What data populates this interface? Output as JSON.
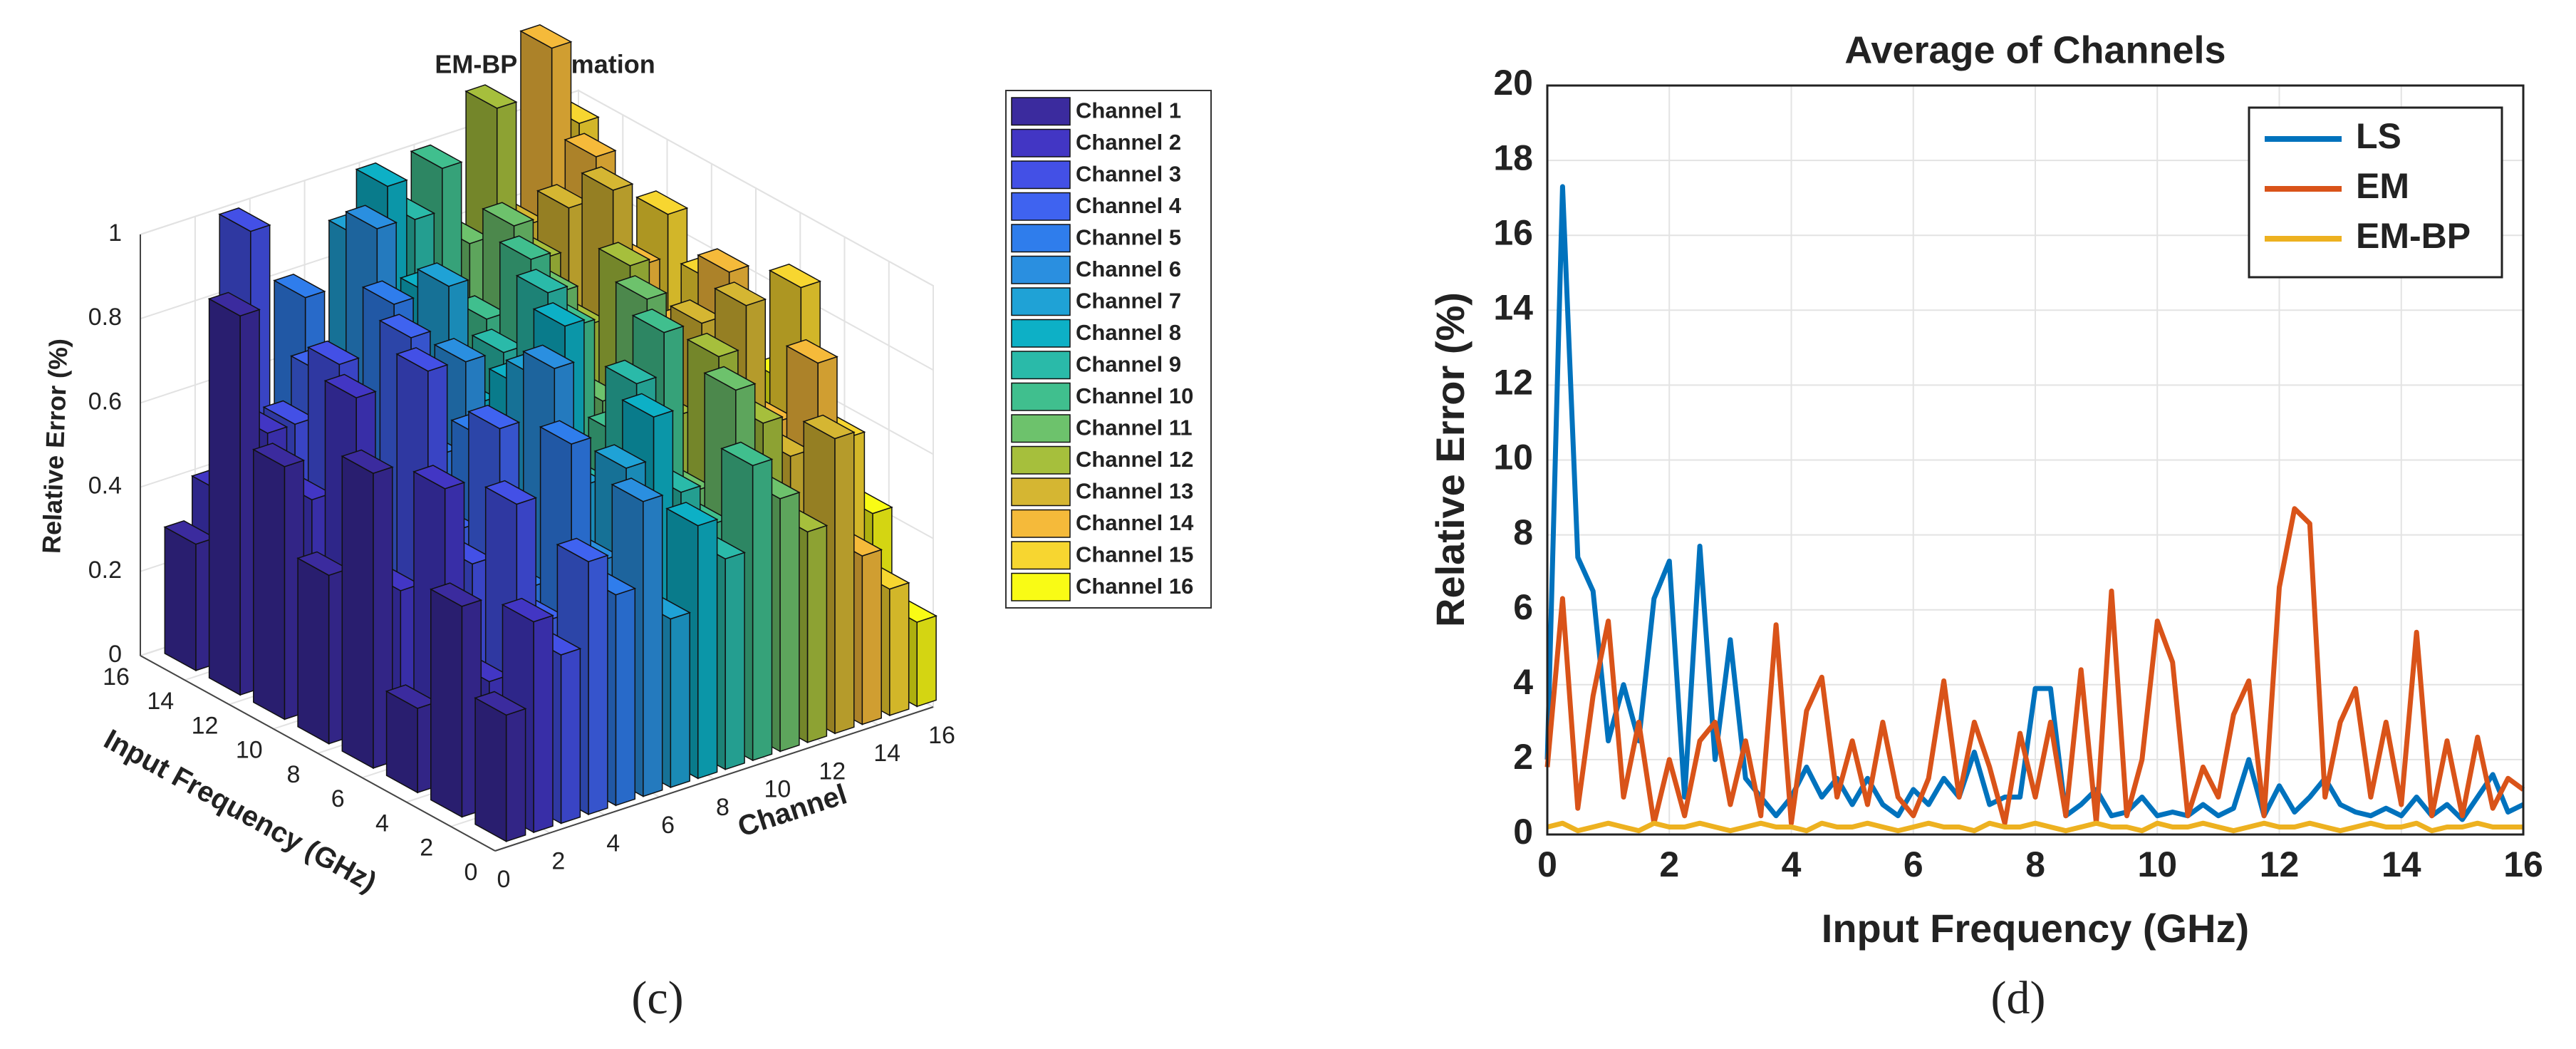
{
  "chart_data": [
    {
      "type": "bar3d",
      "title": "EM-BP Estimation",
      "xlabel": "Channel",
      "ylabel": "Input Frequency (GHz)",
      "zlabel": "Relative Error (%)",
      "caption": "(c)",
      "frequencies": [
        1,
        3,
        5,
        7,
        9,
        11,
        13,
        15
      ],
      "xlim": [
        0,
        16
      ],
      "xticks": [
        0,
        2,
        4,
        6,
        8,
        10,
        12,
        14,
        16
      ],
      "ylim": [
        0,
        16
      ],
      "yticks": [
        0,
        2,
        4,
        6,
        8,
        10,
        12,
        14,
        16
      ],
      "zlim": [
        0,
        1
      ],
      "zticks": [
        0,
        0.2,
        0.4,
        0.6,
        0.8,
        1
      ],
      "grid": true,
      "series": [
        {
          "name": "Channel 1",
          "color": "#3b2b9e",
          "values": [
            0.3,
            0.5,
            0.2,
            0.7,
            0.4,
            0.6,
            0.9,
            0.3
          ]
        },
        {
          "name": "Channel 2",
          "color": "#4236c4",
          "values": [
            0.5,
            0.3,
            0.7,
            0.4,
            0.8,
            0.5,
            0.6,
            0.4
          ]
        },
        {
          "name": "Channel 3",
          "color": "#4350e6",
          "values": [
            0.4,
            0.7,
            0.5,
            0.9,
            0.3,
            0.8,
            0.6,
            1.0
          ]
        },
        {
          "name": "Channel 4",
          "color": "#3f63f0",
          "values": [
            0.6,
            0.4,
            0.8,
            0.5,
            0.9,
            0.4,
            0.7,
            0.5
          ]
        },
        {
          "name": "Channel 5",
          "color": "#2f7dec",
          "values": [
            0.5,
            0.8,
            0.4,
            0.7,
            0.6,
            0.9,
            0.5,
            0.8
          ]
        },
        {
          "name": "Channel 6",
          "color": "#2a8fe0",
          "values": [
            0.7,
            0.5,
            0.9,
            0.4,
            0.8,
            0.6,
            1.0,
            0.6
          ]
        },
        {
          "name": "Channel 7",
          "color": "#1fa2d6",
          "values": [
            0.4,
            0.7,
            0.6,
            0.8,
            0.5,
            0.9,
            0.7,
            0.9
          ]
        },
        {
          "name": "Channel 8",
          "color": "#0db0c6",
          "values": [
            0.6,
            0.8,
            0.5,
            0.9,
            0.7,
            0.6,
            0.8,
            1.0
          ]
        },
        {
          "name": "Channel 9",
          "color": "#2abaa9",
          "values": [
            0.5,
            0.6,
            0.8,
            0.5,
            0.9,
            0.7,
            0.6,
            0.9
          ]
        },
        {
          "name": "Channel 10",
          "color": "#40bf8e",
          "values": [
            0.7,
            0.5,
            0.9,
            0.6,
            0.8,
            0.9,
            0.7,
            1.0
          ]
        },
        {
          "name": "Channel 11",
          "color": "#6dc26c",
          "values": [
            0.6,
            0.8,
            0.5,
            0.9,
            0.6,
            0.8,
            0.9,
            0.8
          ]
        },
        {
          "name": "Channel 12",
          "color": "#a6bf3c",
          "values": [
            0.5,
            0.7,
            0.8,
            0.6,
            0.9,
            0.7,
            0.8,
            1.1
          ]
        },
        {
          "name": "Channel 13",
          "color": "#d5b632",
          "values": [
            0.7,
            0.6,
            0.9,
            0.8,
            0.7,
            1.0,
            0.9,
            0.8
          ]
        },
        {
          "name": "Channel 14",
          "color": "#f5ba3a",
          "values": [
            0.4,
            0.8,
            0.6,
            0.9,
            0.7,
            0.8,
            1.0,
            1.2
          ]
        },
        {
          "name": "Channel 15",
          "color": "#f7d630",
          "values": [
            0.3,
            0.6,
            0.9,
            0.5,
            0.8,
            0.9,
            0.7,
            1.0
          ]
        },
        {
          "name": "Channel 16",
          "color": "#f9fb15",
          "values": [
            0.2,
            0.4,
            0.3,
            0.6,
            0.5,
            0.7,
            0.4,
            0.8
          ]
        }
      ]
    },
    {
      "type": "line",
      "title": "Average of Channels",
      "xlabel": "Input Frequency (GHz)",
      "ylabel": "Relative Error (%)",
      "caption": "(d)",
      "x": [
        0,
        0.25,
        0.5,
        0.75,
        1,
        1.25,
        1.5,
        1.75,
        2,
        2.25,
        2.5,
        2.75,
        3,
        3.25,
        3.5,
        3.75,
        4,
        4.25,
        4.5,
        4.75,
        5,
        5.25,
        5.5,
        5.75,
        6,
        6.25,
        6.5,
        6.75,
        7,
        7.25,
        7.5,
        7.75,
        8,
        8.25,
        8.5,
        8.75,
        9,
        9.25,
        9.5,
        9.75,
        10,
        10.25,
        10.5,
        10.75,
        11,
        11.25,
        11.5,
        11.75,
        12,
        12.25,
        12.5,
        12.75,
        13,
        13.25,
        13.5,
        13.75,
        14,
        14.25,
        14.5,
        14.75,
        15,
        15.25,
        15.5,
        15.75,
        16
      ],
      "xlim": [
        0,
        16
      ],
      "xticks": [
        0,
        2,
        4,
        6,
        8,
        10,
        12,
        14,
        16
      ],
      "ylim": [
        0,
        20
      ],
      "yticks": [
        0,
        2,
        4,
        6,
        8,
        10,
        12,
        14,
        16,
        18,
        20
      ],
      "grid": true,
      "legend": "upper right",
      "series": [
        {
          "name": "LS",
          "color": "#0072bd",
          "values": [
            2.0,
            17.3,
            7.4,
            6.5,
            2.5,
            4.0,
            2.5,
            6.3,
            7.3,
            1.0,
            7.7,
            2.0,
            5.2,
            1.5,
            1.0,
            0.5,
            1.0,
            1.8,
            1.0,
            1.5,
            0.8,
            1.5,
            0.8,
            0.5,
            1.2,
            0.8,
            1.5,
            1.0,
            2.2,
            0.8,
            1.0,
            1.0,
            3.9,
            3.9,
            0.5,
            0.8,
            1.2,
            0.5,
            0.6,
            1.0,
            0.5,
            0.6,
            0.5,
            0.8,
            0.5,
            0.7,
            2.0,
            0.5,
            1.3,
            0.6,
            1.0,
            1.5,
            0.8,
            0.6,
            0.5,
            0.7,
            0.5,
            1.0,
            0.5,
            0.8,
            0.4,
            1.0,
            1.6,
            0.6,
            0.8
          ]
        },
        {
          "name": "EM",
          "color": "#d95319",
          "values": [
            1.8,
            6.3,
            0.7,
            3.7,
            5.7,
            1.0,
            3.0,
            0.3,
            2.0,
            0.5,
            2.5,
            3.0,
            0.8,
            2.5,
            0.5,
            5.6,
            0.3,
            3.3,
            4.2,
            1.0,
            2.5,
            0.8,
            3.0,
            1.0,
            0.5,
            1.5,
            4.1,
            1.0,
            3.0,
            1.8,
            0.3,
            2.7,
            1.0,
            3.0,
            0.5,
            4.4,
            0.3,
            6.5,
            0.5,
            2.0,
            5.7,
            4.6,
            0.5,
            1.8,
            1.0,
            3.2,
            4.1,
            0.5,
            6.6,
            8.7,
            8.3,
            1.0,
            3.0,
            3.9,
            1.0,
            3.0,
            0.8,
            5.4,
            0.5,
            2.5,
            0.5,
            2.6,
            0.7,
            1.5,
            1.2
          ]
        },
        {
          "name": "EM-BP",
          "color": "#edb120",
          "values": [
            0.2,
            0.3,
            0.1,
            0.2,
            0.3,
            0.2,
            0.1,
            0.3,
            0.2,
            0.2,
            0.3,
            0.2,
            0.1,
            0.2,
            0.3,
            0.2,
            0.2,
            0.1,
            0.3,
            0.2,
            0.2,
            0.3,
            0.2,
            0.1,
            0.2,
            0.3,
            0.2,
            0.2,
            0.1,
            0.3,
            0.2,
            0.2,
            0.3,
            0.2,
            0.1,
            0.2,
            0.3,
            0.2,
            0.2,
            0.1,
            0.3,
            0.2,
            0.2,
            0.3,
            0.2,
            0.1,
            0.2,
            0.3,
            0.2,
            0.2,
            0.3,
            0.2,
            0.1,
            0.2,
            0.3,
            0.2,
            0.2,
            0.3,
            0.1,
            0.2,
            0.2,
            0.3,
            0.2,
            0.2,
            0.2
          ]
        }
      ]
    }
  ]
}
